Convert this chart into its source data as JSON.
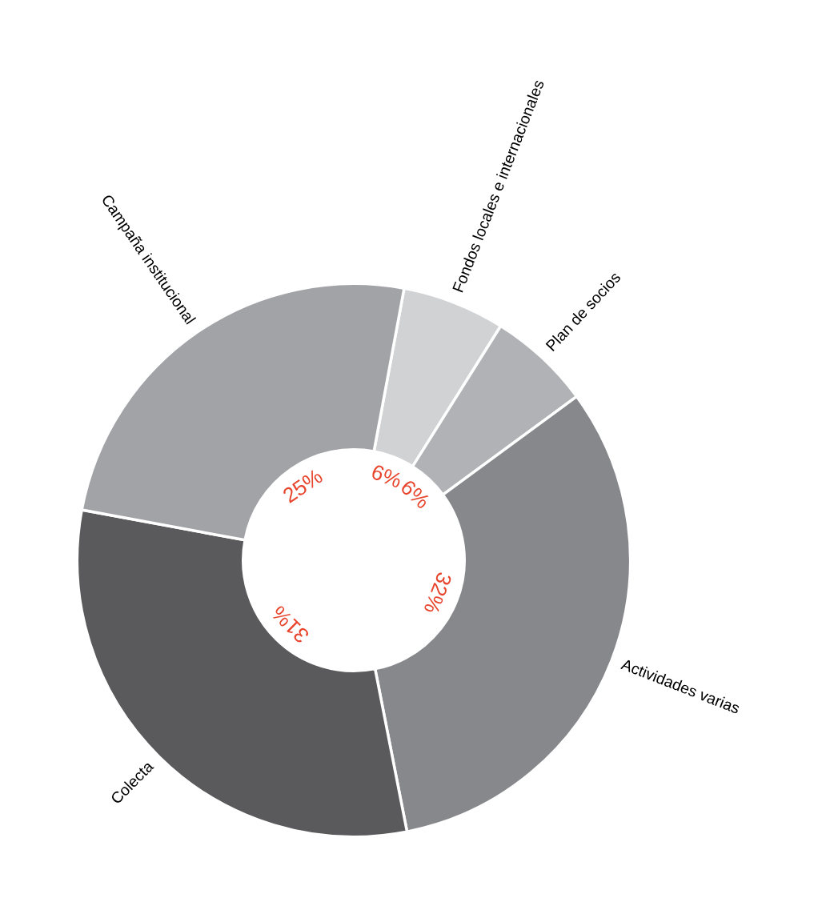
{
  "chart_data": {
    "type": "donut",
    "categories": [
      "Fondos locales e internacionales",
      "Plan de socios",
      "Actividades varias",
      "Colecta",
      "Campaña institucional"
    ],
    "values": [
      6,
      6,
      32,
      31,
      25
    ],
    "colors": [
      "#d1d2d4",
      "#b1b2b5",
      "#87888c",
      "#5a5a5c",
      "#a2a3a7"
    ],
    "value_labels": [
      "6%",
      "6%",
      "32%",
      "31%",
      "25%"
    ],
    "legend": false
  }
}
